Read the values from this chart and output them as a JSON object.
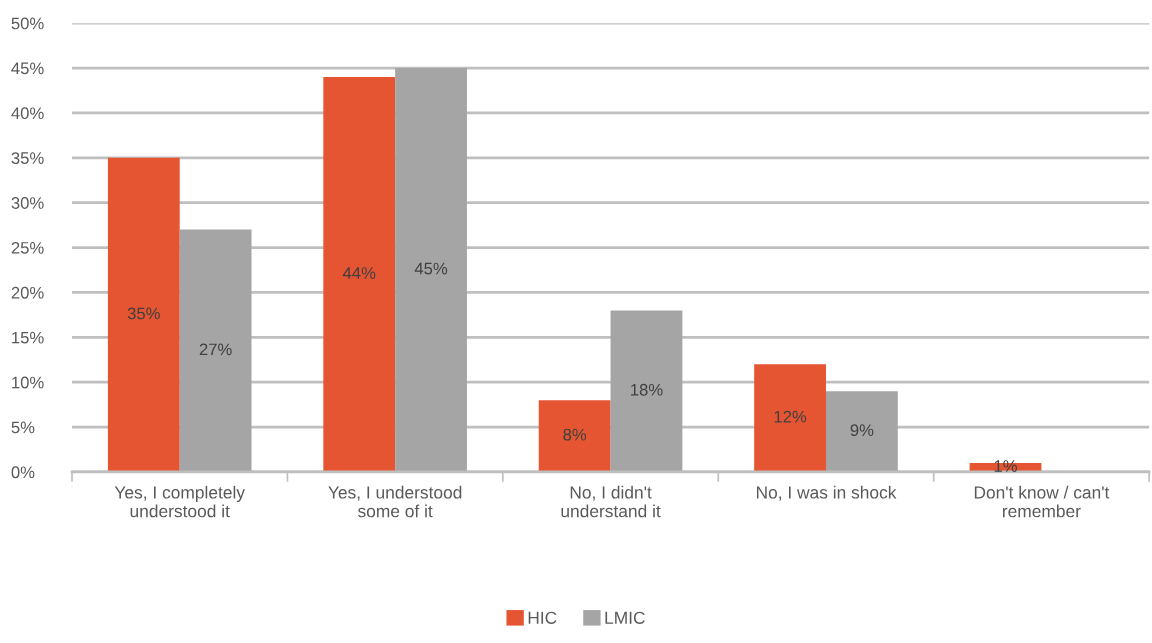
{
  "chart_data": {
    "type": "bar",
    "categories": [
      "Yes, I completely\nunderstood it",
      "Yes, I understood\nsome of it",
      "No, I didn't\nunderstand it",
      "No, I was in shock",
      "Don't know / can't\nremember"
    ],
    "series": [
      {
        "name": "HIC",
        "color": "#e55532",
        "values": [
          35,
          44,
          8,
          12,
          1
        ],
        "value_labels": [
          "35%",
          "44%",
          "8%",
          "12%",
          "1%"
        ]
      },
      {
        "name": "LMIC",
        "color": "#a5a5a5",
        "values": [
          27,
          45,
          18,
          9,
          null
        ],
        "value_labels": [
          "27%",
          "45%",
          "18%",
          "9%",
          null
        ]
      }
    ],
    "ylim": [
      0,
      50
    ],
    "yticks": [
      {
        "value": 0,
        "label": "0%"
      },
      {
        "value": 5,
        "label": "5%"
      },
      {
        "value": 10,
        "label": "10%"
      },
      {
        "value": 15,
        "label": "15%"
      },
      {
        "value": 20,
        "label": "20%"
      },
      {
        "value": 25,
        "label": "25%"
      },
      {
        "value": 30,
        "label": "30%"
      },
      {
        "value": 35,
        "label": "35%"
      },
      {
        "value": 40,
        "label": "40%"
      },
      {
        "value": 45,
        "label": "45%"
      },
      {
        "value": 50,
        "label": "50%"
      }
    ],
    "grid": "y",
    "legend": "bottom"
  }
}
